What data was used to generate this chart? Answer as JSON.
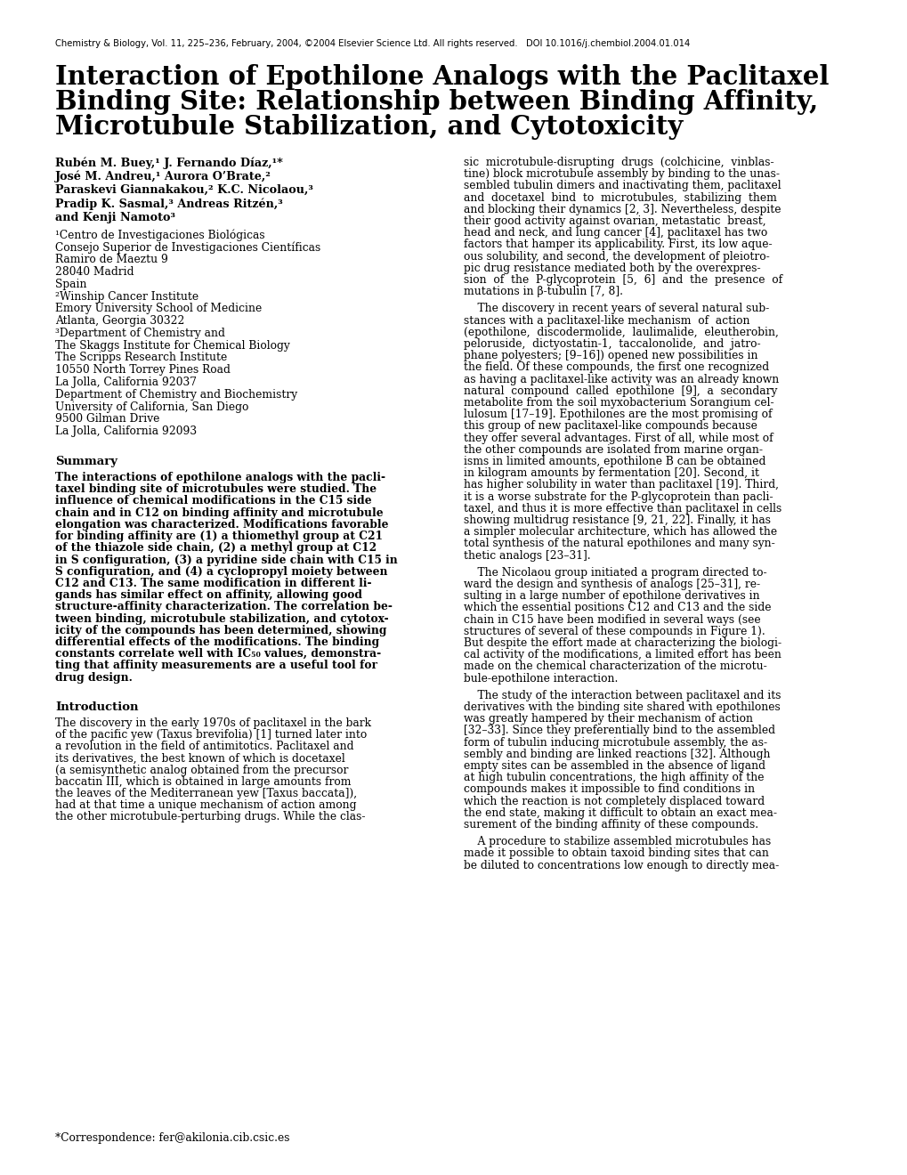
{
  "background_color": "#ffffff",
  "header_line": "Chemistry & Biology, Vol. 11, 225–236, February, 2004, ©2004 Elsevier Science Ltd. All rights reserved.   DOI 10.1016/j.chembiol.2004.01.014",
  "title_line1": "Interaction of Epothilone Analogs with the Paclitaxel",
  "title_line2": "Binding Site: Relationship between Binding Affinity,",
  "title_line3": "Microtubule Stabilization, and Cytotoxicity",
  "author_line1": "Rubén M. Buey,¹ J. Fernando Díaz,¹*",
  "author_line2": "José M. Andreu,¹ Aurora O’Brate,²",
  "author_line3": "Paraskevi Giannakakou,² K.C. Nicolaou,³",
  "author_line4": "Pradip K. Sasmal,³ Andreas Ritzén,³",
  "author_line5": "and Kenji Namoto³",
  "affil_lines": [
    "¹Centro de Investigaciones Biológicas",
    "Consejo Superior de Investigaciones Científicas",
    "Ramiro de Maeztu 9",
    "28040 Madrid",
    "Spain",
    "²Winship Cancer Institute",
    "Emory University School of Medicine",
    "Atlanta, Georgia 30322",
    "³Department of Chemistry and",
    "The Skaggs Institute for Chemical Biology",
    "The Scripps Research Institute",
    "10550 North Torrey Pines Road",
    "La Jolla, California 92037",
    "Department of Chemistry and Biochemistry",
    "University of California, San Diego",
    "9500 Gilman Drive",
    "La Jolla, California 92093"
  ],
  "summary_head": "Summary",
  "summary_body_lines": [
    "The interactions of epothilone analogs with the pacli-",
    "taxel binding site of microtubules were studied. The",
    "influence of chemical modifications in the C15 side",
    "chain and in C12 on binding affinity and microtubule",
    "elongation was characterized. Modifications favorable",
    "for binding affinity are (1) a thiomethyl group at C21",
    "of the thiazole side chain, (2) a methyl group at C12",
    "in S configuration, (3) a pyridine side chain with C15 in",
    "S configuration, and (4) a cyclopropyl moiety between",
    "C12 and C13. The same modification in different li-",
    "gands has similar effect on affinity, allowing good",
    "structure-affinity characterization. The correlation be-",
    "tween binding, microtubule stabilization, and cytotox-",
    "icity of the compounds has been determined, showing",
    "differential effects of the modifications. The binding",
    "constants correlate well with IC₅₀ values, demonstra-",
    "ting that affinity measurements are a useful tool for",
    "drug design."
  ],
  "intro_head": "Introduction",
  "intro_body_lines": [
    "The discovery in the early 1970s of paclitaxel in the bark",
    "of the pacific yew (Taxus brevifolia) [1] turned later into",
    "a revolution in the field of antimitotics. Paclitaxel and",
    "its derivatives, the best known of which is docetaxel",
    "(a semisynthetic analog obtained from the precursor",
    "baccatin III, which is obtained in large amounts from",
    "the leaves of the Mediterranean yew [Taxus baccata]),",
    "had at that time a unique mechanism of action among",
    "the other microtubule-perturbing drugs. While the clas-"
  ],
  "rc_para1_lines": [
    "sic  microtubule-disrupting  drugs  (colchicine,  vinblas-",
    "tine) block microtubule assembly by binding to the unas-",
    "sembled tubulin dimers and inactivating them, paclitaxel",
    "and  docetaxel  bind  to  microtubules,  stabilizing  them",
    "and blocking their dynamics [2, 3]. Nevertheless, despite",
    "their good activity against ovarian, metastatic  breast,",
    "head and neck, and lung cancer [4], paclitaxel has two",
    "factors that hamper its applicability. First, its low aque-",
    "ous solubility, and second, the development of pleiotro-",
    "pic drug resistance mediated both by the overexpres-",
    "sion  of  the  P-glycoprotein  [5,  6]  and  the  presence  of",
    "mutations in β-tubulin [7, 8]."
  ],
  "rc_para2_lines": [
    "    The discovery in recent years of several natural sub-",
    "stances with a paclitaxel-like mechanism  of  action",
    "(epothilone,  discodermolide,  laulimalide,  eleutherobin,",
    "peloruside,  dictyostatin-1,  taccalonolide,  and  jatro-",
    "phane polyesters; [9–16]) opened new possibilities in",
    "the field. Of these compounds, the first one recognized",
    "as having a paclitaxel-like activity was an already known",
    "natural  compound  called  epothilone  [9],  a  secondary",
    "metabolite from the soil myxobacterium Sorangium cel-",
    "lulosum [17–19]. Epothilones are the most promising of",
    "this group of new paclitaxel-like compounds because",
    "they offer several advantages. First of all, while most of",
    "the other compounds are isolated from marine organ-",
    "isms in limited amounts, epothilone B can be obtained",
    "in kilogram amounts by fermentation [20]. Second, it",
    "has higher solubility in water than paclitaxel [19]. Third,",
    "it is a worse substrate for the P-glycoprotein than pacli-",
    "taxel, and thus it is more effective than paclitaxel in cells",
    "showing multidrug resistance [9, 21, 22]. Finally, it has",
    "a simpler molecular architecture, which has allowed the",
    "total synthesis of the natural epothilones and many syn-",
    "thetic analogs [23–31]."
  ],
  "rc_para3_lines": [
    "    The Nicolaou group initiated a program directed to-",
    "ward the design and synthesis of analogs [25–31], re-",
    "sulting in a large number of epothilone derivatives in",
    "which the essential positions C12 and C13 and the side",
    "chain in C15 have been modified in several ways (see",
    "structures of several of these compounds in Figure 1).",
    "But despite the effort made at characterizing the biologi-",
    "cal activity of the modifications, a limited effort has been",
    "made on the chemical characterization of the microtu-",
    "bule-epothilone interaction."
  ],
  "rc_para4_lines": [
    "    The study of the interaction between paclitaxel and its",
    "derivatives with the binding site shared with epothilones",
    "was greatly hampered by their mechanism of action",
    "[32–33]. Since they preferentially bind to the assembled",
    "form of tubulin inducing microtubule assembly, the as-",
    "sembly and binding are linked reactions [32]. Although",
    "empty sites can be assembled in the absence of ligand",
    "at high tubulin concentrations, the high affinity of the",
    "compounds makes it impossible to find conditions in",
    "which the reaction is not completely displaced toward",
    "the end state, making it difficult to obtain an exact mea-",
    "surement of the binding affinity of these compounds."
  ],
  "rc_para5_lines": [
    "    A procedure to stabilize assembled microtubules has",
    "made it possible to obtain taxoid binding sites that can",
    "be diluted to concentrations low enough to directly mea-"
  ],
  "footnote": "*Correspondence: fer@akilonia.cib.csic.es"
}
